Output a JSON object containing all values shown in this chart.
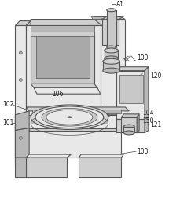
{
  "bg_color": "#ffffff",
  "line_color": "#555555",
  "label_color": "#222222",
  "figsize": [
    2.3,
    2.5
  ],
  "dpi": 100,
  "light_gray": "#e8e8e8",
  "mid_gray": "#d0d0d0",
  "dark_gray": "#b8b8b8",
  "screen_gray": "#c8c8c8",
  "label_fs": 5.2
}
